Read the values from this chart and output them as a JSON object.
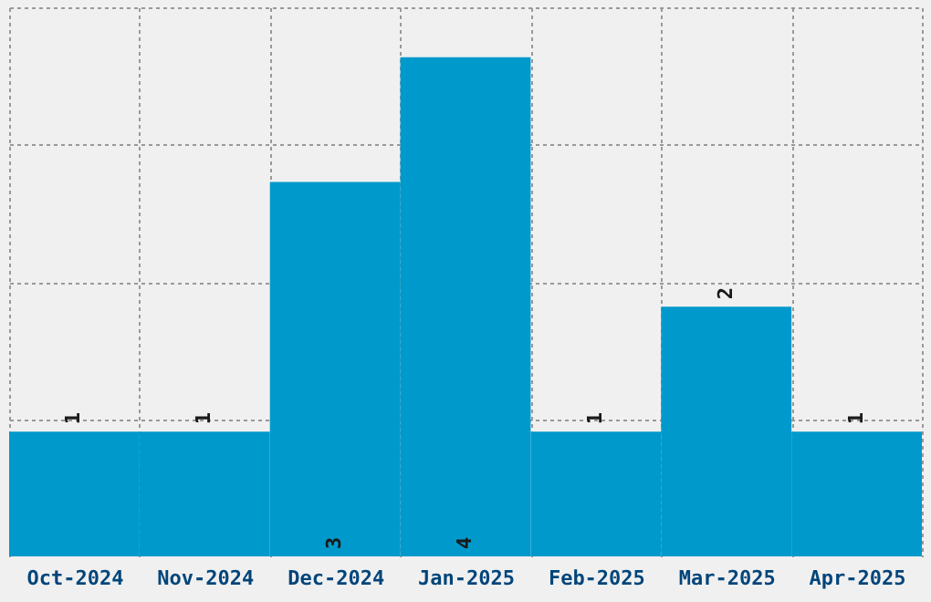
{
  "chart_data": {
    "type": "bar",
    "categories": [
      "Oct-2024",
      "Nov-2024",
      "Dec-2024",
      "Jan-2025",
      "Feb-2025",
      "Mar-2025",
      "Apr-2025"
    ],
    "values": [
      1,
      1,
      3,
      4,
      1,
      2,
      1
    ],
    "color": "#0099cc",
    "data_labels": true,
    "ylim": [
      0,
      4.4
    ],
    "yticks": [
      {
        "value": 1.1,
        "label": null
      },
      {
        "value": 2.2,
        "label": null
      },
      {
        "value": 3.3,
        "label": null
      },
      {
        "value": 4.4,
        "label": null
      }
    ],
    "grid": true,
    "tick_labels": "x"
  }
}
